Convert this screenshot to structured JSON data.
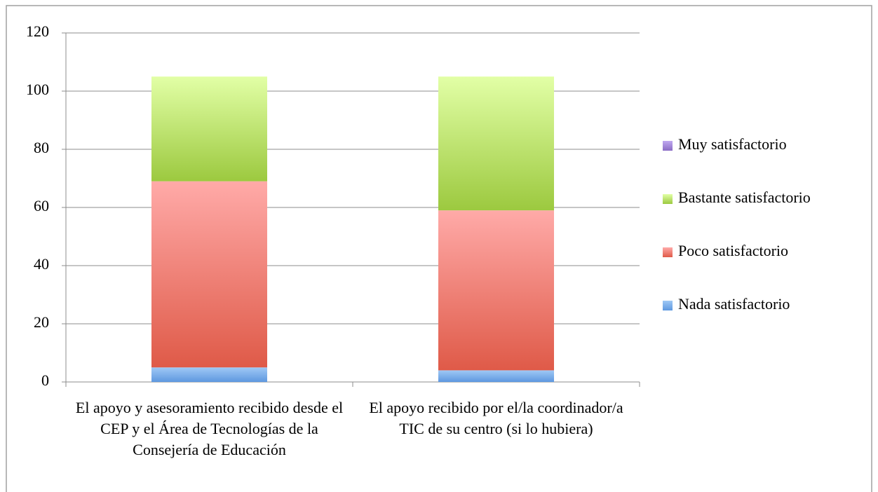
{
  "chart_data": {
    "type": "stacked_bar",
    "categories": [
      "El apoyo y asesoramiento recibido desde el CEP y el Área de Tecnologías de la Consejería de Educación",
      "El apoyo recibido por el/la coordinador/a TIC de su centro (si lo hubiera)"
    ],
    "series": [
      {
        "name": "Nada satisfactorio",
        "color": "#6fa8e8",
        "values": [
          5,
          4
        ]
      },
      {
        "name": "Poco satisfactorio",
        "color": "#e8685a",
        "values": [
          64,
          55
        ]
      },
      {
        "name": "Bastante satisfactorio",
        "color": "#b5dc6a",
        "values": [
          36,
          46
        ]
      },
      {
        "name": "Muy satisfactorio",
        "color": "#9a7fce",
        "values": [
          0,
          0
        ]
      }
    ],
    "ylim": [
      0,
      120
    ],
    "yticks": [
      0,
      20,
      40,
      60,
      80,
      100,
      120
    ],
    "grid": true,
    "legend": "right"
  }
}
